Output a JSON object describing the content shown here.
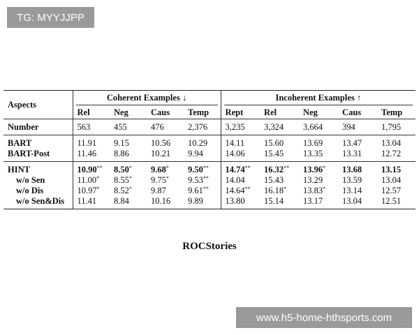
{
  "watermarks": {
    "top": "TG: MYYJJPP",
    "bottom": "www.h5-home-hthsports.com"
  },
  "table": {
    "corner": "Aspects",
    "groups": [
      {
        "label": "Coherent Examples ↓",
        "columns": [
          "Rel",
          "Neg",
          "Caus",
          "Temp"
        ]
      },
      {
        "label": "Incoherent Examples ↑",
        "columns": [
          "Rept",
          "Rel",
          "Neg",
          "Caus",
          "Temp"
        ]
      }
    ],
    "sections": [
      [
        {
          "label": "Number",
          "cells": [
            {
              "text": "563"
            },
            {
              "text": "455"
            },
            {
              "text": "476"
            },
            {
              "text": "2,376"
            },
            {
              "text": "3,235"
            },
            {
              "text": "3,324"
            },
            {
              "text": "3,664"
            },
            {
              "text": "394"
            },
            {
              "text": "1,795"
            }
          ]
        }
      ],
      [
        {
          "label": "BART",
          "cells": [
            {
              "text": "11.91"
            },
            {
              "text": "9.15"
            },
            {
              "text": "10.56"
            },
            {
              "text": "10.29"
            },
            {
              "text": "14.11"
            },
            {
              "text": "15.60"
            },
            {
              "text": "13.69"
            },
            {
              "text": "13.47"
            },
            {
              "text": "13.04"
            }
          ]
        },
        {
          "label": "BART-Post",
          "cells": [
            {
              "text": "11.46"
            },
            {
              "text": "8.86"
            },
            {
              "text": "10.21"
            },
            {
              "text": "9.94"
            },
            {
              "text": "14.06"
            },
            {
              "text": "15.45"
            },
            {
              "text": "13.35"
            },
            {
              "text": "13.31"
            },
            {
              "text": "12.72"
            }
          ]
        }
      ],
      [
        {
          "label": "HINT",
          "cells": [
            {
              "text": "10.90",
              "sup": "**",
              "bold": true
            },
            {
              "text": "8.50",
              "sup": "*",
              "bold": true
            },
            {
              "text": "9.68",
              "sup": "*",
              "bold": true
            },
            {
              "text": "9.50",
              "sup": "**",
              "bold": true
            },
            {
              "text": "14.74",
              "sup": "**",
              "bold": true
            },
            {
              "text": "16.32",
              "sup": "**",
              "bold": true
            },
            {
              "text": "13.96",
              "sup": "*",
              "bold": true
            },
            {
              "text": "13.68",
              "bold": true
            },
            {
              "text": "13.15",
              "bold": true
            }
          ]
        },
        {
          "label": "w/o Sen",
          "indent": true,
          "cells": [
            {
              "text": "11.00",
              "sup": "*"
            },
            {
              "text": "8.55",
              "sup": "*"
            },
            {
              "text": "9.75",
              "sup": "*"
            },
            {
              "text": "9.53",
              "sup": "**"
            },
            {
              "text": "14.04"
            },
            {
              "text": "15.43"
            },
            {
              "text": "13.29"
            },
            {
              "text": "13.59"
            },
            {
              "text": "13.04"
            }
          ]
        },
        {
          "label": "w/o Dis",
          "indent": true,
          "cells": [
            {
              "text": "10.97",
              "sup": "*"
            },
            {
              "text": "8.52",
              "sup": "*"
            },
            {
              "text": "9.87"
            },
            {
              "text": "9.61",
              "sup": "**"
            },
            {
              "text": "14.64",
              "sup": "**"
            },
            {
              "text": "16.18",
              "sup": "*"
            },
            {
              "text": "13.83",
              "sup": "*"
            },
            {
              "text": "13.14"
            },
            {
              "text": "12.57"
            }
          ]
        },
        {
          "label": "w/o Sen&Dis",
          "indent": true,
          "cells": [
            {
              "text": "11.41"
            },
            {
              "text": "8.84"
            },
            {
              "text": "10.16"
            },
            {
              "text": "9.89"
            },
            {
              "text": "13.80"
            },
            {
              "text": "15.14"
            },
            {
              "text": "13.17"
            },
            {
              "text": "13.04"
            },
            {
              "text": "12.51"
            }
          ]
        }
      ]
    ],
    "caption": "ROCStories"
  }
}
